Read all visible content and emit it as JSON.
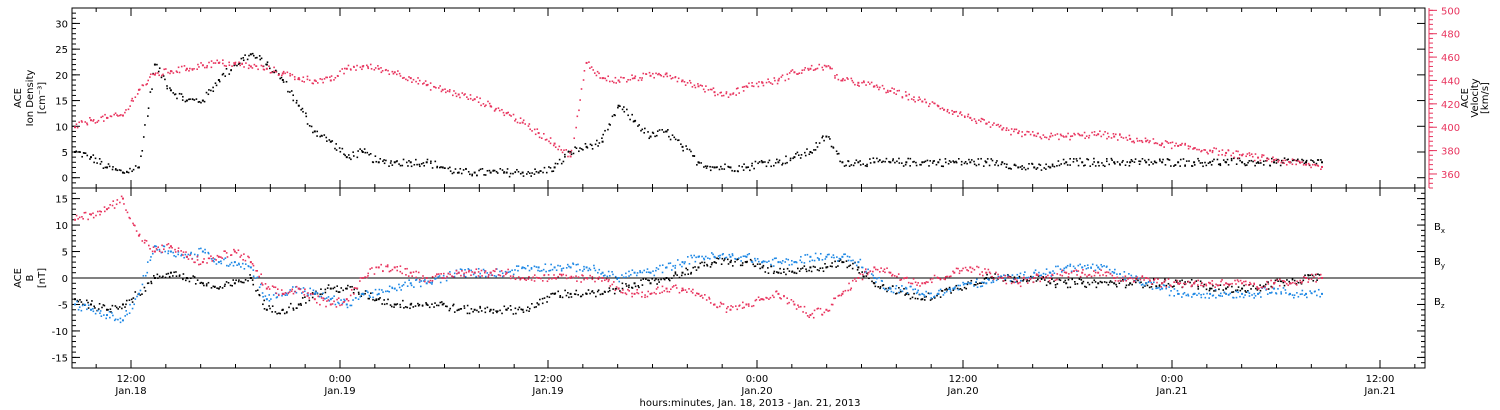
{
  "colors": {
    "black": "#000000",
    "pink": "#e8345e",
    "blue": "#1e88e5"
  },
  "chart_data": {
    "type": "scatter",
    "xlabel": "hours:minutes, Jan. 18, 2013 - Jan. 21, 2013",
    "x_ticks": [
      {
        "top": "12:00",
        "bottom": "Jan.18"
      },
      {
        "top": "0:00",
        "bottom": "Jan.19"
      },
      {
        "top": "12:00",
        "bottom": "Jan.19"
      },
      {
        "top": "0:00",
        "bottom": "Jan.20"
      },
      {
        "top": "12:00",
        "bottom": "Jan.20"
      },
      {
        "top": "0:00",
        "bottom": "Jan.21"
      },
      {
        "top": "12:00",
        "bottom": "Jan.21"
      }
    ],
    "panels": [
      {
        "left_axis": {
          "label_lines": [
            "ACE",
            "Ion Density"
          ],
          "unit": "[cm⁻³]",
          "ylim": [
            -2,
            33
          ],
          "ticks": [
            "0",
            "5",
            "10",
            "15",
            "20",
            "25",
            "30"
          ]
        },
        "right_axis": {
          "label_lines": [
            "ACE",
            "Velocity"
          ],
          "unit": "[km/s]",
          "ylim": [
            348,
            502
          ],
          "ticks": [
            "360",
            "380",
            "400",
            "420",
            "440",
            "460",
            "480",
            "500"
          ]
        },
        "series": [
          {
            "axis": "left",
            "color": "black",
            "x": [
              0,
              1,
              2,
              3,
              4,
              5,
              6,
              7,
              8,
              9,
              10,
              11,
              12,
              13,
              14,
              15,
              16,
              17,
              18,
              19,
              20,
              21,
              22,
              23,
              24,
              25,
              26,
              27,
              28,
              29,
              30,
              31,
              32,
              33,
              34,
              35,
              36,
              37,
              38,
              39,
              40,
              41,
              42,
              43,
              44,
              45,
              46,
              47,
              48,
              49,
              50,
              51,
              52,
              53,
              54,
              55,
              56,
              57,
              58,
              59,
              60,
              61,
              62,
              63,
              64,
              65,
              66,
              67,
              68,
              69,
              70,
              71,
              72,
              73,
              74,
              75,
              76,
              77,
              78
            ],
            "y": [
              5,
              4,
              2,
              1,
              2,
              22,
              17,
              15,
              15,
              19,
              22,
              24,
              22,
              19,
              14,
              9,
              7,
              4,
              5,
              3,
              3,
              3,
              3,
              2,
              1,
              1,
              1,
              1,
              1,
              1,
              2,
              5,
              6,
              7,
              14,
              11,
              8,
              9,
              6,
              3,
              2,
              2,
              2,
              3,
              3,
              4,
              5,
              8,
              3,
              3,
              3,
              3,
              3,
              3,
              3,
              3,
              3,
              3,
              3,
              2,
              2,
              2,
              3,
              3,
              3,
              3,
              3,
              3,
              3,
              3,
              3,
              3,
              3,
              3,
              3,
              3,
              3,
              3,
              3
            ]
          },
          {
            "axis": "right",
            "color": "pink",
            "x": [
              0,
              1,
              2,
              3,
              4,
              5,
              6,
              7,
              8,
              9,
              10,
              11,
              12,
              13,
              14,
              15,
              16,
              17,
              18,
              19,
              20,
              21,
              22,
              23,
              24,
              25,
              26,
              27,
              28,
              29,
              30,
              31,
              32,
              33,
              34,
              35,
              36,
              37,
              38,
              39,
              40,
              41,
              42,
              43,
              44,
              45,
              46,
              47,
              48,
              49,
              50,
              51,
              52,
              53,
              54,
              55,
              56,
              57,
              58,
              59,
              60,
              61,
              62,
              63,
              64,
              65,
              66,
              67,
              68,
              69,
              70,
              71,
              72,
              73,
              74,
              75,
              76,
              77,
              78
            ],
            "y": [
              400,
              406,
              408,
              410,
              432,
              445,
              448,
              450,
              453,
              455,
              454,
              452,
              450,
              446,
              442,
              440,
              440,
              450,
              452,
              450,
              447,
              442,
              436,
              432,
              428,
              424,
              418,
              412,
              404,
              395,
              386,
              375,
              455,
              442,
              440,
              442,
              444,
              446,
              440,
              435,
              430,
              428,
              435,
              438,
              440,
              447,
              450,
              452,
              440,
              438,
              435,
              431,
              427,
              422,
              418,
              413,
              408,
              403,
              398,
              395,
              393,
              392,
              392,
              393,
              394,
              392,
              390,
              388,
              386,
              384,
              382,
              380,
              378,
              376,
              374,
              372,
              370,
              368,
              366
            ]
          }
        ]
      },
      {
        "left_axis": {
          "label_lines": [
            "ACE",
            "B"
          ],
          "unit": "[nT]",
          "ylim": [
            -17,
            17
          ],
          "ticks": [
            "-15",
            "-10",
            "-5",
            "0",
            "5",
            "10",
            "15"
          ]
        },
        "legend": [
          "Bx",
          "By",
          "Bz"
        ],
        "series": [
          {
            "name": "Bx",
            "color": "black",
            "x": [
              0,
              1,
              2,
              3,
              4,
              5,
              6,
              7,
              8,
              9,
              10,
              11,
              12,
              13,
              14,
              15,
              16,
              17,
              18,
              19,
              20,
              21,
              22,
              23,
              24,
              25,
              26,
              27,
              28,
              29,
              30,
              31,
              32,
              33,
              34,
              35,
              36,
              37,
              38,
              39,
              40,
              41,
              42,
              43,
              44,
              45,
              46,
              47,
              48,
              49,
              50,
              51,
              52,
              53,
              54,
              55,
              56,
              57,
              58,
              59,
              60,
              61,
              62,
              63,
              64,
              65,
              66,
              67,
              68,
              69,
              70,
              71,
              72,
              73,
              74,
              75,
              76,
              77,
              78
            ],
            "y": [
              -4,
              -5,
              -6,
              -5,
              -3,
              0,
              1,
              0,
              -1,
              -2,
              -1,
              0,
              -6,
              -6,
              -5,
              -3,
              -2,
              -2,
              -3,
              -4,
              -5,
              -5,
              -5,
              -5,
              -6,
              -6,
              -6,
              -6,
              -6,
              -5,
              -3,
              -3,
              -3,
              -3,
              -2,
              -1,
              -1,
              0,
              1,
              2,
              3,
              3,
              3,
              2,
              1,
              1,
              2,
              2,
              3,
              2,
              -1,
              -2,
              -3,
              -4,
              -3,
              -2,
              -1,
              0,
              0,
              0,
              0,
              -1,
              -1,
              -1,
              -1,
              -1,
              -1,
              -1,
              -1,
              -1,
              -1,
              -2,
              -2,
              -2,
              -2,
              -1,
              -1,
              0,
              0
            ]
          },
          {
            "name": "By",
            "color": "blue",
            "x": [
              0,
              1,
              2,
              3,
              4,
              5,
              6,
              7,
              8,
              9,
              10,
              11,
              12,
              13,
              14,
              15,
              16,
              17,
              18,
              19,
              20,
              21,
              22,
              23,
              24,
              25,
              26,
              27,
              28,
              29,
              30,
              31,
              32,
              33,
              34,
              35,
              36,
              37,
              38,
              39,
              40,
              41,
              42,
              43,
              44,
              45,
              46,
              47,
              48,
              49,
              50,
              51,
              52,
              53,
              54,
              55,
              56,
              57,
              58,
              59,
              60,
              61,
              62,
              63,
              64,
              65,
              66,
              67,
              68,
              69,
              70,
              71,
              72,
              73,
              74,
              75,
              76,
              77,
              78
            ],
            "y": [
              -5,
              -6,
              -7,
              -8,
              -3,
              6,
              5,
              4,
              5,
              3,
              3,
              2,
              -4,
              -3,
              -2,
              -3,
              -4,
              -5,
              -3,
              -3,
              -2,
              -1,
              -1,
              0,
              1,
              1,
              1,
              1,
              2,
              2,
              2,
              2,
              2,
              1,
              0,
              1,
              1,
              2,
              3,
              4,
              4,
              4,
              4,
              3,
              3,
              3,
              4,
              4,
              4,
              3,
              0,
              -2,
              -2,
              -3,
              -3,
              -2,
              -1,
              -1,
              0,
              0,
              1,
              1,
              2,
              2,
              2,
              1,
              0,
              -1,
              -2,
              -3,
              -3,
              -3,
              -3,
              -3,
              -3,
              -2,
              -3,
              -3,
              -3
            ]
          },
          {
            "name": "Bz",
            "color": "pink",
            "x": [
              0,
              1,
              2,
              3,
              4,
              5,
              6,
              7,
              8,
              9,
              10,
              11,
              12,
              13,
              14,
              15,
              16,
              17,
              18,
              19,
              20,
              21,
              22,
              23,
              24,
              25,
              26,
              27,
              28,
              29,
              30,
              31,
              32,
              33,
              34,
              35,
              36,
              37,
              38,
              39,
              40,
              41,
              42,
              43,
              44,
              45,
              46,
              47,
              48,
              49,
              50,
              51,
              52,
              53,
              54,
              55,
              56,
              57,
              58,
              59,
              60,
              61,
              62,
              63,
              64,
              65,
              66,
              67,
              68,
              69,
              70,
              71,
              72,
              73,
              74,
              75,
              76,
              77,
              78
            ],
            "y": [
              11,
              12,
              13,
              15,
              8,
              5,
              6,
              4,
              3,
              4,
              5,
              3,
              -2,
              -3,
              -2,
              -4,
              -5,
              -4,
              0,
              2,
              2,
              1,
              0,
              0,
              1,
              1,
              1,
              1,
              0,
              0,
              0,
              0,
              0,
              0,
              -2,
              -3,
              -3,
              -2,
              -2,
              -3,
              -5,
              -6,
              -5,
              -4,
              -3,
              -5,
              -7,
              -6,
              -3,
              0,
              2,
              1,
              0,
              -1,
              0,
              1,
              2,
              1,
              0,
              -1,
              0,
              0,
              1,
              1,
              1,
              0,
              0,
              0,
              -1,
              -1,
              -1,
              -1,
              -1,
              -1,
              -2,
              -1,
              -1,
              0,
              0
            ]
          }
        ]
      }
    ]
  }
}
